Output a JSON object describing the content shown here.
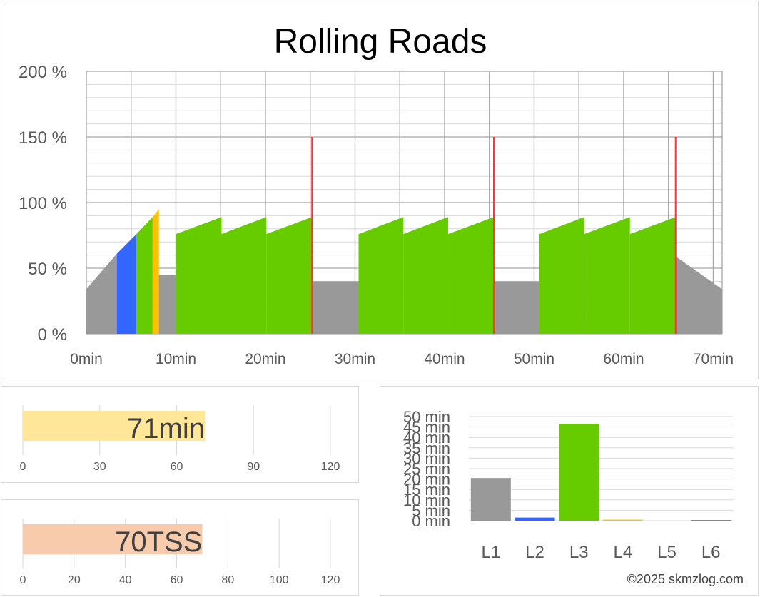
{
  "colors": {
    "Z1": "#999999",
    "Z2": "#3366ff",
    "Z3": "#66cc00",
    "Z4": "#ffc000",
    "Z5": "#ffe699",
    "Z6": "#ff3333",
    "grid": "#bfbfbf",
    "text": "#595959",
    "duration_bar": "#ffe699",
    "tss_bar": "#f8cbad"
  },
  "chart_data": [
    {
      "type": "area",
      "title": "Rolling Roads",
      "x_unit": "min",
      "y_unit": "%",
      "xlim": [
        0,
        71
      ],
      "ylim": [
        0,
        200
      ],
      "x_ticks": [
        "0min",
        "10min",
        "20min",
        "30min",
        "40min",
        "50min",
        "60min",
        "70min"
      ],
      "y_ticks": [
        "0 %",
        "50 %",
        "100 %",
        "150 %",
        "200 %"
      ],
      "segments": [
        {
          "zone": "Z1",
          "x": [
            0,
            3.4
          ],
          "y": [
            34,
            61
          ]
        },
        {
          "zone": "Z2",
          "x": [
            3.4,
            5.6
          ],
          "y": [
            61,
            76
          ]
        },
        {
          "zone": "Z3",
          "x": [
            5.6,
            7.4
          ],
          "y": [
            76,
            89
          ]
        },
        {
          "zone": "Z4",
          "x": [
            7.4,
            8.1
          ],
          "y": [
            89,
            95
          ]
        },
        {
          "zone": "Z1",
          "x": [
            8.1,
            10
          ],
          "y": [
            45,
            45
          ]
        },
        {
          "zone": "Z3",
          "x": [
            10,
            15.1
          ],
          "y": [
            76,
            89
          ]
        },
        {
          "zone": "Z3",
          "x": [
            15.1,
            20.1
          ],
          "y": [
            76,
            89
          ]
        },
        {
          "zone": "Z3",
          "x": [
            20.1,
            25.2
          ],
          "y": [
            76,
            89
          ]
        },
        {
          "zone": "Z1",
          "x": [
            25.2,
            30.4
          ],
          "y": [
            40,
            40
          ]
        },
        {
          "zone": "Z3",
          "x": [
            30.4,
            35.4
          ],
          "y": [
            76,
            89
          ]
        },
        {
          "zone": "Z3",
          "x": [
            35.4,
            40.4
          ],
          "y": [
            76,
            89
          ]
        },
        {
          "zone": "Z3",
          "x": [
            40.4,
            45.5
          ],
          "y": [
            76,
            89
          ]
        },
        {
          "zone": "Z1",
          "x": [
            45.5,
            50.6
          ],
          "y": [
            40,
            40
          ]
        },
        {
          "zone": "Z3",
          "x": [
            50.6,
            55.6
          ],
          "y": [
            76,
            89
          ]
        },
        {
          "zone": "Z3",
          "x": [
            55.6,
            60.7
          ],
          "y": [
            76,
            89
          ]
        },
        {
          "zone": "Z3",
          "x": [
            60.7,
            65.8
          ],
          "y": [
            76,
            89
          ]
        },
        {
          "zone": "Z1",
          "x": [
            65.8,
            71
          ],
          "y": [
            59,
            34
          ]
        }
      ],
      "spikes": [
        {
          "zone": "Z6",
          "x": 25.2,
          "y": 150
        },
        {
          "zone": "Z6",
          "x": 45.5,
          "y": 150
        },
        {
          "zone": "Z6",
          "x": 65.8,
          "y": 150
        }
      ],
      "grid": true
    },
    {
      "type": "bar",
      "orientation": "horizontal",
      "value": 71,
      "label": "71min",
      "xlim": [
        0,
        120
      ],
      "x_ticks": [
        "0",
        "30",
        "60",
        "90",
        "120"
      ]
    },
    {
      "type": "bar",
      "orientation": "horizontal",
      "value": 70,
      "label": "70TSS",
      "xlim": [
        0,
        120
      ],
      "x_ticks": [
        "0",
        "20",
        "40",
        "60",
        "80",
        "100",
        "120"
      ]
    },
    {
      "type": "bar",
      "categories": [
        "L1",
        "L2",
        "L3",
        "L4",
        "L5",
        "L6"
      ],
      "values": [
        20.5,
        1.5,
        46.5,
        0.5,
        0,
        0.3
      ],
      "ylim": [
        0,
        50
      ],
      "y_ticks": [
        "0 min",
        "5 min",
        "10 min",
        "15 min",
        "20 min",
        "25 min",
        "30 min",
        "35 min",
        "40 min",
        "45 min",
        "50 min"
      ]
    }
  ],
  "footer": {
    "copyright": "©2025 skmzlog.com"
  }
}
